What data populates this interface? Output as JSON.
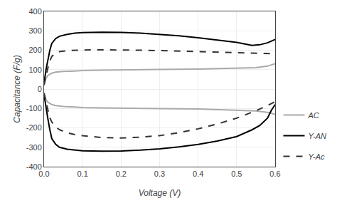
{
  "chart_data": {
    "type": "line",
    "xlabel": "Voltage (V)",
    "ylabel": "Capacitance (F/g)",
    "xlim": [
      0,
      0.6
    ],
    "ylim": [
      -400,
      400
    ],
    "xticks": [
      {
        "value": 0,
        "label": "0.0"
      },
      0.1,
      0.2,
      0.3,
      0.4,
      0.5,
      0.6
    ],
    "yticks": [
      -400,
      -300,
      -200,
      -100,
      0,
      100,
      200,
      300,
      400
    ],
    "grid": true,
    "legend": "lower right",
    "series": [
      {
        "name": "AC",
        "color": "#aaaaaa",
        "line_style": "solid",
        "x": [
          0.0,
          0.005,
          0.01,
          0.02,
          0.03,
          0.05,
          0.08,
          0.1,
          0.15,
          0.2,
          0.3,
          0.4,
          0.5,
          0.55,
          0.58,
          0.6
        ],
        "values": [
          30,
          55,
          70,
          82,
          87,
          91,
          93,
          95,
          97,
          99,
          101,
          103,
          106,
          110,
          118,
          130
        ]
      },
      {
        "name": "AC",
        "color": "#aaaaaa",
        "line_style": "solid",
        "x": [
          0.0,
          0.005,
          0.01,
          0.02,
          0.03,
          0.05,
          0.08,
          0.1,
          0.15,
          0.2,
          0.3,
          0.4,
          0.5,
          0.55,
          0.58,
          0.6
        ],
        "values": [
          -30,
          -55,
          -68,
          -80,
          -85,
          -90,
          -93,
          -95,
          -97,
          -99,
          -101,
          -103,
          -108,
          -113,
          -120,
          -130
        ]
      },
      {
        "name": "Y-AN",
        "color": "#000000",
        "line_style": "solid",
        "x": [
          0.0,
          0.005,
          0.01,
          0.015,
          0.02,
          0.03,
          0.04,
          0.06,
          0.08,
          0.1,
          0.15,
          0.2,
          0.25,
          0.3,
          0.35,
          0.4,
          0.45,
          0.5,
          0.54,
          0.56,
          0.58,
          0.59,
          0.6
        ],
        "values": [
          30,
          100,
          150,
          200,
          235,
          260,
          272,
          282,
          288,
          291,
          293,
          292,
          288,
          282,
          274,
          264,
          253,
          240,
          225,
          228,
          238,
          248,
          255
        ]
      },
      {
        "name": "Y-AN",
        "color": "#000000",
        "line_style": "solid",
        "x": [
          0.0,
          0.005,
          0.01,
          0.015,
          0.02,
          0.03,
          0.04,
          0.06,
          0.08,
          0.1,
          0.15,
          0.2,
          0.25,
          0.3,
          0.35,
          0.4,
          0.45,
          0.5,
          0.54,
          0.56,
          0.58,
          0.59,
          0.6
        ],
        "values": [
          -30,
          -100,
          -155,
          -210,
          -255,
          -285,
          -300,
          -310,
          -315,
          -318,
          -320,
          -319,
          -315,
          -308,
          -298,
          -285,
          -268,
          -245,
          -210,
          -188,
          -150,
          -110,
          -80
        ]
      },
      {
        "name": "Y-Ac",
        "color": "#333333",
        "line_style": "dashed",
        "x": [
          0.0,
          0.005,
          0.01,
          0.015,
          0.02,
          0.03,
          0.04,
          0.06,
          0.08,
          0.1,
          0.15,
          0.2,
          0.25,
          0.3,
          0.35,
          0.4,
          0.45,
          0.5,
          0.55,
          0.58,
          0.6
        ],
        "values": [
          20,
          70,
          110,
          145,
          168,
          185,
          193,
          198,
          200,
          201,
          202,
          202,
          200,
          198,
          195,
          192,
          189,
          186,
          183,
          182,
          182
        ]
      },
      {
        "name": "Y-Ac",
        "color": "#333333",
        "line_style": "dashed",
        "x": [
          0.0,
          0.005,
          0.01,
          0.015,
          0.02,
          0.03,
          0.04,
          0.06,
          0.08,
          0.1,
          0.15,
          0.2,
          0.25,
          0.3,
          0.35,
          0.4,
          0.45,
          0.5,
          0.55,
          0.58,
          0.6
        ],
        "values": [
          -20,
          -68,
          -108,
          -148,
          -170,
          -195,
          -210,
          -225,
          -235,
          -240,
          -250,
          -252,
          -248,
          -240,
          -225,
          -205,
          -180,
          -150,
          -112,
          -85,
          -65
        ]
      }
    ]
  }
}
